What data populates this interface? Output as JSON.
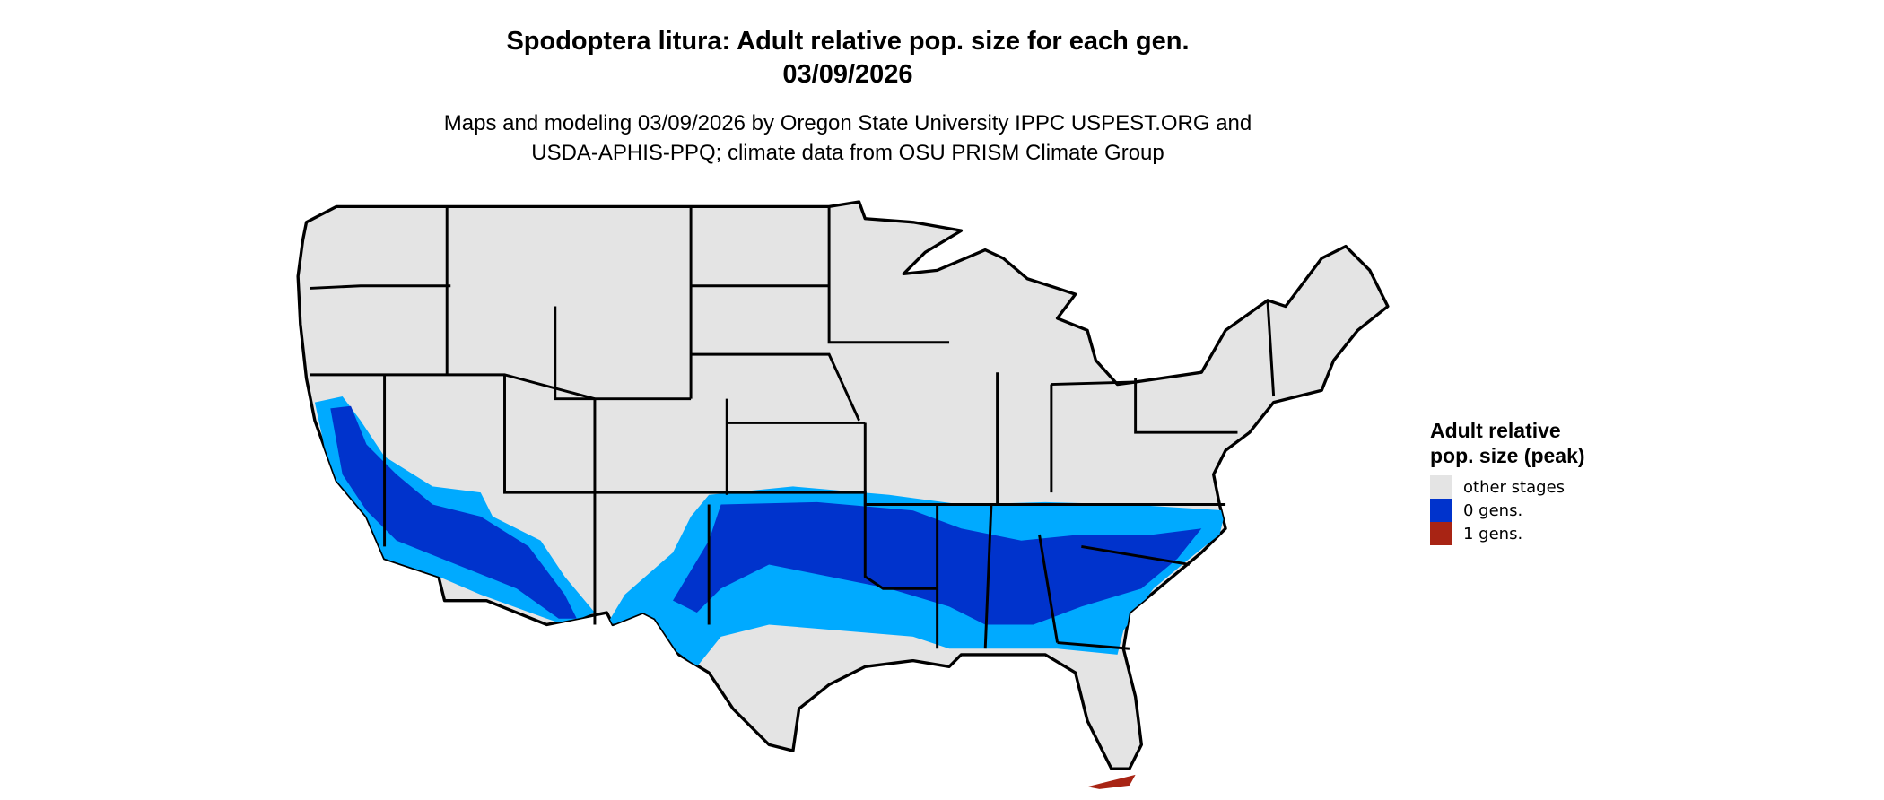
{
  "title_line1": "Spodoptera litura: Adult relative pop. size for each gen.",
  "title_line2": "03/09/2026",
  "subtitle_line1": "Maps and modeling 03/09/2026 by Oregon State University IPPC USPEST.ORG and",
  "subtitle_line2": "USDA-APHIS-PPQ; climate data from OSU PRISM Climate Group",
  "legend": {
    "title": "Adult relative pop. size (peak)",
    "items": [
      {
        "label": "other stages",
        "color": "#e4e4e4"
      },
      {
        "label": "0 gens.",
        "color": "#0033cc"
      },
      {
        "label": "1 gens.",
        "color": "#a82414"
      }
    ]
  },
  "colors": {
    "land": "#e4e4e4",
    "blue_dark": "#0033cc",
    "blue_mid": "#0066ee",
    "blue_light": "#00aaff",
    "red": "#a82414",
    "border": "#000000"
  }
}
